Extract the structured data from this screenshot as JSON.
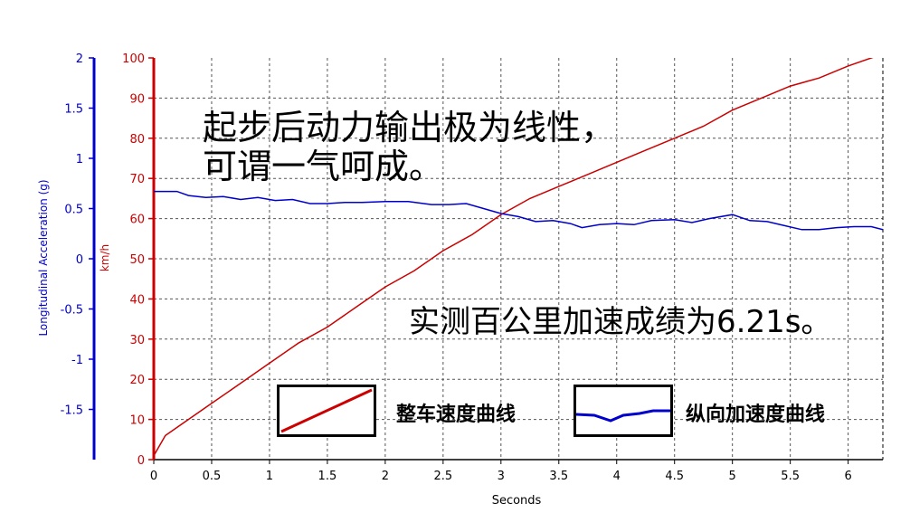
{
  "chart_data": {
    "type": "line",
    "xlabel": "Seconds",
    "ylabel_left": "Longitudinal Acceleration (g)",
    "ylabel_right": "km/h",
    "xlim": [
      0,
      6.3
    ],
    "ylim_speed": [
      0,
      100
    ],
    "ylim_accel": [
      -2,
      2
    ],
    "x_ticks": [
      "0",
      "0.5",
      "1",
      "1.5",
      "2",
      "2.5",
      "3",
      "3.5",
      "4",
      "4.5",
      "5",
      "5.5",
      "6"
    ],
    "speed_ticks": [
      "0",
      "10",
      "20",
      "30",
      "40",
      "50",
      "60",
      "70",
      "80",
      "90",
      "100"
    ],
    "accel_ticks": [
      "2",
      "1.5",
      "1",
      "0.5",
      "0",
      "-0.5",
      "-1",
      "-1.5"
    ],
    "grid": true,
    "colors": {
      "speed": "#cc0000",
      "accel": "#0000cc",
      "grid": "#555555"
    },
    "series": [
      {
        "name": "整车速度曲线",
        "axis": "speed",
        "x": [
          0,
          0.1,
          0.25,
          0.5,
          0.75,
          1,
          1.25,
          1.5,
          1.75,
          2,
          2.25,
          2.5,
          2.75,
          3,
          3.25,
          3.5,
          3.75,
          4,
          4.25,
          4.5,
          4.75,
          5,
          5.25,
          5.5,
          5.75,
          6,
          6.3
        ],
        "values": [
          1,
          6,
          9,
          14,
          19,
          24,
          29,
          33,
          38,
          43,
          47,
          52,
          56,
          61,
          65,
          68,
          71,
          74,
          77,
          80,
          83,
          87,
          90,
          93,
          95,
          98,
          101
        ]
      },
      {
        "name": "纵向加速度曲线",
        "axis": "accel",
        "x": [
          0,
          0.2,
          0.3,
          0.45,
          0.6,
          0.75,
          0.9,
          1.05,
          1.2,
          1.35,
          1.5,
          1.65,
          1.8,
          2,
          2.2,
          2.4,
          2.55,
          2.7,
          2.85,
          3,
          3.15,
          3.3,
          3.45,
          3.6,
          3.7,
          3.85,
          4,
          4.15,
          4.3,
          4.5,
          4.65,
          4.8,
          5,
          5.15,
          5.3,
          5.45,
          5.6,
          5.75,
          5.9,
          6.05,
          6.2,
          6.3
        ],
        "values": [
          0.67,
          0.67,
          0.63,
          0.61,
          0.62,
          0.59,
          0.61,
          0.58,
          0.59,
          0.55,
          0.55,
          0.56,
          0.56,
          0.57,
          0.57,
          0.54,
          0.54,
          0.55,
          0.5,
          0.45,
          0.42,
          0.37,
          0.38,
          0.35,
          0.31,
          0.34,
          0.35,
          0.34,
          0.38,
          0.39,
          0.36,
          0.4,
          0.44,
          0.38,
          0.37,
          0.33,
          0.29,
          0.29,
          0.31,
          0.32,
          0.32,
          0.29
        ]
      }
    ]
  },
  "annotations": {
    "headline_line1": "起步后动力输出极为线性，",
    "headline_line2": "可谓一气呵成。",
    "result": "实测百公里加速成绩为6.21s。"
  },
  "legend": {
    "speed_label": "整车速度曲线",
    "accel_label": "纵向加速度曲线"
  }
}
